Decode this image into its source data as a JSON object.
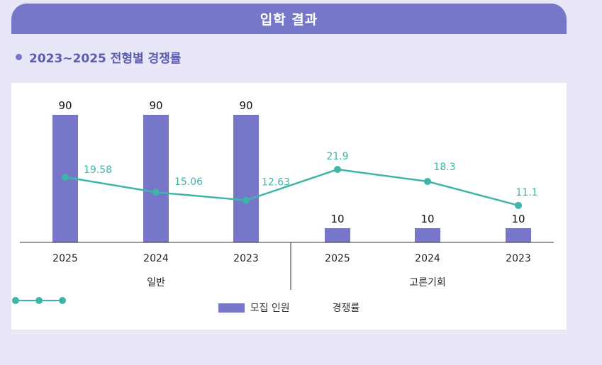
{
  "header": {
    "title": "입학 결과"
  },
  "section": {
    "title": "2023~2025 전형별 경쟁률"
  },
  "colors": {
    "header_bg": "#7677c8",
    "bar": "#7677c8",
    "line": "#3fb5a8",
    "background": "#e8e7f7"
  },
  "chart_data": {
    "type": "bar",
    "categories": [
      "2025",
      "2024",
      "2023",
      "2025",
      "2024",
      "2023"
    ],
    "groups": [
      {
        "label": "일반",
        "categories": [
          "2025",
          "2024",
          "2023"
        ]
      },
      {
        "label": "고른기회",
        "categories": [
          "2025",
          "2024",
          "2023"
        ]
      }
    ],
    "series": [
      {
        "name": "모집 인원",
        "type": "bar",
        "values": [
          90,
          90,
          90,
          10,
          10,
          10
        ],
        "labels": [
          "90",
          "90",
          "90",
          "10",
          "10",
          "10"
        ]
      },
      {
        "name": "경쟁률",
        "type": "line",
        "values": [
          19.58,
          15.06,
          12.63,
          21.9,
          18.3,
          11.1
        ],
        "labels": [
          "19.58",
          "15.06",
          "12.63",
          "21.9",
          "18.3",
          "11.1"
        ]
      }
    ],
    "legend": "bottom",
    "grid": false
  }
}
